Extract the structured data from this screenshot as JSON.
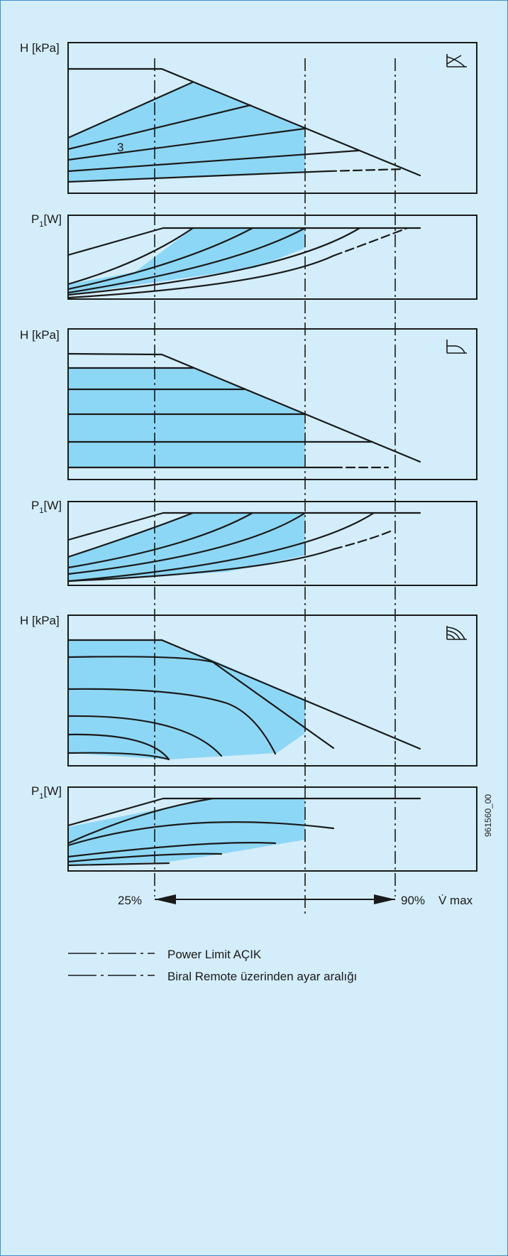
{
  "colors": {
    "background": "#d4edfa",
    "border": "#3b8fd0",
    "fill_area": "#8dd7f6",
    "line": "#1a1a1a"
  },
  "panels": {
    "head_1": {
      "y_label": "H [kPa]",
      "mode_icon": "proportional-pressure-icon",
      "curve_marker": "3"
    },
    "power_1": {
      "y_label_main": "P",
      "y_label_sub": "1",
      "y_label_unit": "[W]"
    },
    "head_2": {
      "y_label": "H [kPa]",
      "mode_icon": "constant-pressure-icon"
    },
    "power_2": {
      "y_label_main": "P",
      "y_label_sub": "1",
      "y_label_unit": "[W]"
    },
    "head_3": {
      "y_label": "H [kPa]",
      "mode_icon": "constant-curve-icon"
    },
    "power_3": {
      "y_label_main": "P",
      "y_label_sub": "1",
      "y_label_unit": "[W]"
    }
  },
  "figure_code": "961560_00",
  "range": {
    "start_label": "25%",
    "end_label": "90%",
    "axis_label": "V̇ max"
  },
  "legend": [
    {
      "label": "Power Limit AÇIK",
      "line_style": "dash-dot"
    },
    {
      "label": "Biral Remote üzerinden ayar aralığı",
      "line_style": "dash-dot"
    }
  ]
}
